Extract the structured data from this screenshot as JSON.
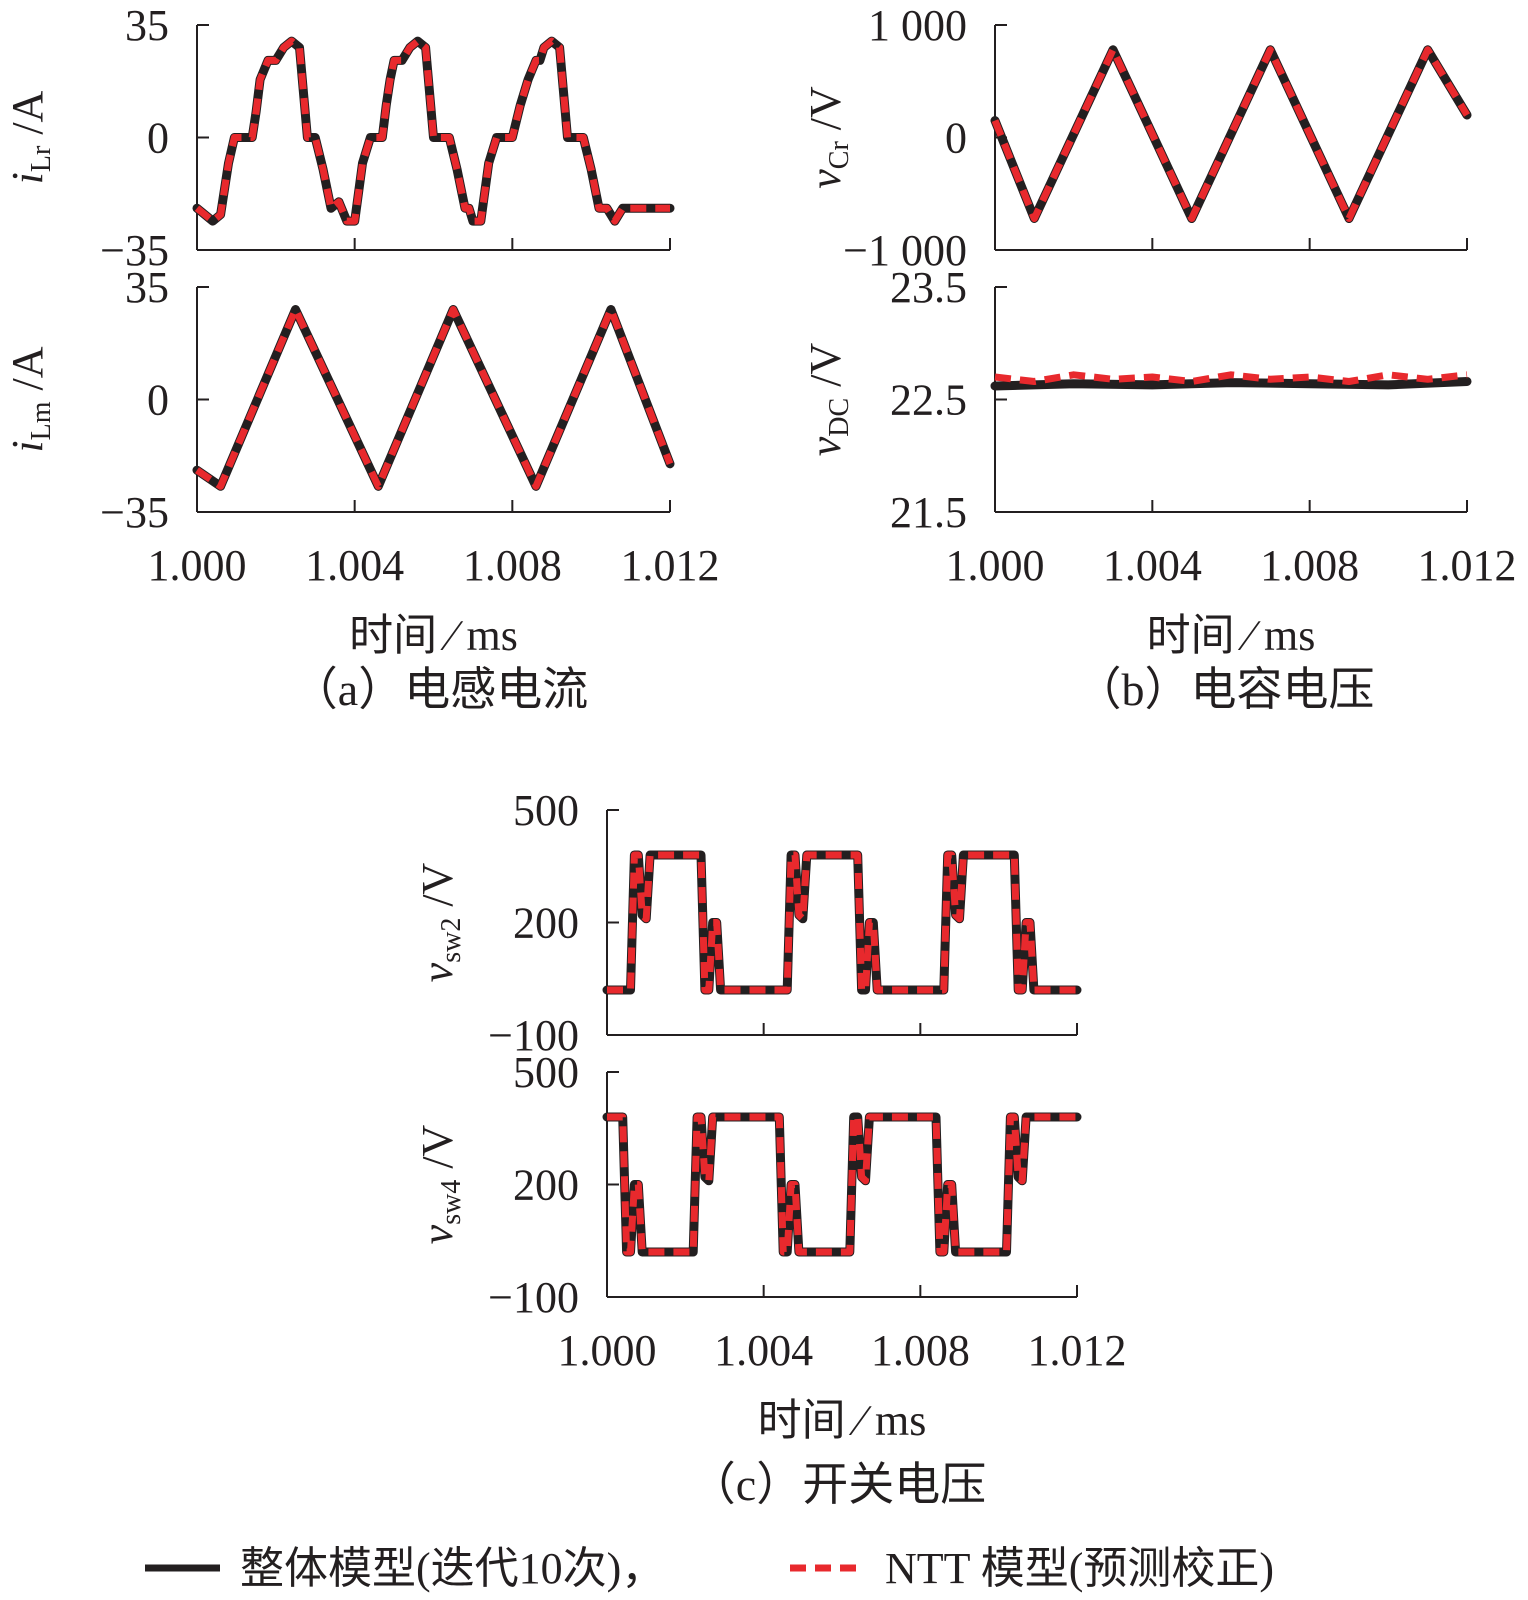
{
  "chart_data": [
    {
      "id": "a-top",
      "type": "line",
      "ylabel": {
        "var": "i",
        "sub": "Lr",
        "unit": "/A"
      },
      "yticks": [
        "35",
        "0",
        "−35"
      ],
      "ylim": [
        -35,
        35
      ],
      "xlim": [
        1.0,
        1.012
      ],
      "show_xticks": false,
      "series": [
        {
          "legend": 0,
          "x": [
            1.0,
            1.0004,
            1.0006,
            1.0008,
            1.00095,
            1.0012,
            1.0014,
            1.0015,
            1.0016,
            1.0018,
            1.002,
            1.0022,
            1.0024,
            1.0026,
            1.0028,
            1.0029,
            1.003,
            1.0032,
            1.0034,
            1.0036,
            1.0038,
            1.004,
            1.0042,
            1.0044,
            1.0046,
            1.0047,
            1.0048,
            1.0049,
            1.005,
            1.0052,
            1.0054,
            1.0056,
            1.0058,
            1.006,
            1.0062,
            1.0064,
            1.0066,
            1.0068,
            1.0069,
            1.007,
            1.0072,
            1.0074,
            1.0076,
            1.0078,
            1.008,
            1.0082,
            1.0084,
            1.0086,
            1.0087,
            1.0088,
            1.009,
            1.0092,
            1.0094,
            1.0096,
            1.0098,
            1.01,
            1.0102,
            1.0104,
            1.0106,
            1.0108,
            1.011,
            1.0112,
            1.0114,
            1.0116,
            1.0118,
            1.012
          ],
          "y": [
            -22,
            -26,
            -24,
            -8,
            0,
            0,
            0,
            8,
            18,
            24,
            24,
            28,
            30,
            28,
            0,
            0,
            0,
            -10,
            -22,
            -20,
            -26,
            -26,
            -8,
            0,
            0,
            0,
            10,
            18,
            24,
            24,
            28,
            30,
            28,
            0,
            0,
            0,
            -10,
            -22,
            -22,
            -26,
            -26,
            -8,
            0,
            0,
            0,
            10,
            18,
            24,
            24,
            28,
            30,
            28,
            0,
            0,
            0,
            -10,
            -22,
            -22,
            -26,
            -22,
            -22,
            -22,
            -22,
            -22,
            -22,
            -22
          ]
        },
        {
          "legend": 1,
          "x": [
            1.0,
            1.0004,
            1.0006,
            1.0008,
            1.00095,
            1.0012,
            1.0014,
            1.0015,
            1.0016,
            1.0018,
            1.002,
            1.0022,
            1.0024,
            1.0026,
            1.0028,
            1.0029,
            1.003,
            1.0032,
            1.0034,
            1.0036,
            1.0038,
            1.004,
            1.0042,
            1.0044,
            1.0046,
            1.0047,
            1.0048,
            1.0049,
            1.005,
            1.0052,
            1.0054,
            1.0056,
            1.0058,
            1.006,
            1.0062,
            1.0064,
            1.0066,
            1.0068,
            1.0069,
            1.007,
            1.0072,
            1.0074,
            1.0076,
            1.0078,
            1.008,
            1.0082,
            1.0084,
            1.0086,
            1.0087,
            1.0088,
            1.009,
            1.0092,
            1.0094,
            1.0096,
            1.0098,
            1.01,
            1.0102,
            1.0104,
            1.0106,
            1.0108,
            1.011,
            1.0112,
            1.0114,
            1.0116,
            1.0118,
            1.012
          ],
          "y": [
            -22,
            -26,
            -24,
            -8,
            0,
            0,
            0,
            8,
            18,
            24,
            24,
            28,
            30,
            28,
            0,
            0,
            0,
            -10,
            -22,
            -20,
            -26,
            -26,
            -8,
            0,
            0,
            0,
            10,
            18,
            24,
            24,
            28,
            30,
            28,
            0,
            0,
            0,
            -10,
            -22,
            -22,
            -26,
            -26,
            -8,
            0,
            0,
            0,
            10,
            18,
            24,
            24,
            28,
            30,
            28,
            0,
            0,
            0,
            -10,
            -22,
            -22,
            -26,
            -22,
            -22,
            -22,
            -22,
            -22,
            -22,
            -22
          ]
        }
      ]
    },
    {
      "id": "a-bottom",
      "type": "line",
      "ylabel": {
        "var": "i",
        "sub": "Lm",
        "unit": "/A"
      },
      "yticks": [
        "35",
        "0",
        "−35"
      ],
      "ylim": [
        -35,
        35
      ],
      "xlim": [
        1.0,
        1.012
      ],
      "show_xticks": true,
      "xticks": [
        "1.000",
        "1.004",
        "1.008",
        "1.012"
      ],
      "xlabel": "时间 ∕ ms",
      "series": [
        {
          "legend": 0,
          "x": [
            1.0,
            1.0006,
            1.0025,
            1.0046,
            1.0065,
            1.0086,
            1.0105,
            1.012
          ],
          "y": [
            -22,
            -27,
            28,
            -27,
            28,
            -27,
            28,
            -20
          ]
        },
        {
          "legend": 1,
          "x": [
            1.0,
            1.0006,
            1.0025,
            1.0046,
            1.0065,
            1.0086,
            1.0105,
            1.012
          ],
          "y": [
            -22,
            -27,
            28,
            -27,
            28,
            -27,
            28,
            -20
          ]
        }
      ]
    },
    {
      "id": "b-top",
      "type": "line",
      "ylabel": {
        "var": "v",
        "sub": "Cr",
        "unit": "/V"
      },
      "yticks": [
        "1 000",
        "0",
        "−1 000"
      ],
      "ylim": [
        -1000,
        1000
      ],
      "xlim": [
        1.0,
        1.012
      ],
      "show_xticks": false,
      "series": [
        {
          "legend": 0,
          "x": [
            1.0,
            1.001,
            1.003,
            1.005,
            1.007,
            1.009,
            1.011,
            1.012
          ],
          "y": [
            150,
            -720,
            780,
            -720,
            780,
            -720,
            780,
            200
          ]
        },
        {
          "legend": 1,
          "x": [
            1.0,
            1.001,
            1.003,
            1.005,
            1.007,
            1.009,
            1.011,
            1.012
          ],
          "y": [
            150,
            -720,
            780,
            -720,
            780,
            -720,
            780,
            200
          ]
        }
      ]
    },
    {
      "id": "b-bottom",
      "type": "line",
      "ylabel": {
        "var": "v",
        "sub": "DC",
        "unit": "/V"
      },
      "yticks": [
        "23.5",
        "22.5",
        "21.5"
      ],
      "ylim": [
        21.5,
        23.5
      ],
      "xlim": [
        1.0,
        1.012
      ],
      "show_xticks": true,
      "xticks": [
        "1.000",
        "1.004",
        "1.008",
        "1.012"
      ],
      "xlabel": "时间 ∕ ms",
      "series": [
        {
          "legend": 0,
          "x": [
            1.0,
            1.002,
            1.004,
            1.006,
            1.008,
            1.01,
            1.012
          ],
          "y": [
            22.62,
            22.64,
            22.63,
            22.65,
            22.64,
            22.63,
            22.66
          ]
        },
        {
          "legend": 1,
          "x": [
            1.0,
            1.001,
            1.002,
            1.003,
            1.004,
            1.005,
            1.006,
            1.007,
            1.008,
            1.009,
            1.01,
            1.011,
            1.012
          ],
          "y": [
            22.7,
            22.66,
            22.72,
            22.68,
            22.7,
            22.66,
            22.72,
            22.68,
            22.7,
            22.66,
            22.72,
            22.68,
            22.72
          ]
        }
      ]
    },
    {
      "id": "c-top",
      "type": "line",
      "ylabel": {
        "var": "v",
        "sub": "sw2",
        "unit": "/V"
      },
      "yticks": [
        "500",
        "200",
        "−100"
      ],
      "ylim": [
        -100,
        500
      ],
      "xlim": [
        1.0,
        1.012
      ],
      "show_xticks": false,
      "series": [
        {
          "legend": 0,
          "x": [
            1.0,
            1.0006,
            1.0007,
            1.0008,
            1.0009,
            1.001,
            1.0011,
            1.0012,
            1.0013,
            1.0014,
            1.0024,
            1.0025,
            1.0026,
            1.0027,
            1.0028,
            1.0029,
            1.003,
            1.0031,
            1.0032,
            1.0036,
            1.0046,
            1.0047,
            1.0048,
            1.0049,
            1.005,
            1.0051,
            1.0052,
            1.0053,
            1.0054,
            1.0064,
            1.0065,
            1.0066,
            1.0067,
            1.0068,
            1.0069,
            1.007,
            1.0071,
            1.0072,
            1.0076,
            1.0086,
            1.0087,
            1.0088,
            1.0089,
            1.009,
            1.0091,
            1.0092,
            1.0093,
            1.0094,
            1.0104,
            1.0105,
            1.0106,
            1.0107,
            1.0108,
            1.0109,
            1.011,
            1.0111,
            1.0112,
            1.012
          ],
          "y": [
            20,
            20,
            380,
            380,
            220,
            210,
            380,
            380,
            380,
            380,
            380,
            20,
            20,
            200,
            200,
            20,
            20,
            20,
            20,
            20,
            20,
            380,
            380,
            220,
            210,
            380,
            380,
            380,
            380,
            380,
            20,
            20,
            200,
            200,
            20,
            20,
            20,
            20,
            20,
            20,
            380,
            380,
            220,
            210,
            380,
            380,
            380,
            380,
            380,
            20,
            20,
            200,
            200,
            20,
            20,
            20,
            20,
            20
          ]
        },
        {
          "legend": 1,
          "x": [
            1.0,
            1.0006,
            1.0007,
            1.0008,
            1.0009,
            1.001,
            1.0011,
            1.0012,
            1.0013,
            1.0014,
            1.0024,
            1.0025,
            1.0026,
            1.0027,
            1.0028,
            1.0029,
            1.003,
            1.0031,
            1.0032,
            1.0036,
            1.0046,
            1.0047,
            1.0048,
            1.0049,
            1.005,
            1.0051,
            1.0052,
            1.0053,
            1.0054,
            1.0064,
            1.0065,
            1.0066,
            1.0067,
            1.0068,
            1.0069,
            1.007,
            1.0071,
            1.0072,
            1.0076,
            1.0086,
            1.0087,
            1.0088,
            1.0089,
            1.009,
            1.0091,
            1.0092,
            1.0093,
            1.0094,
            1.0104,
            1.0105,
            1.0106,
            1.0107,
            1.0108,
            1.0109,
            1.011,
            1.0111,
            1.0112,
            1.012
          ],
          "y": [
            20,
            20,
            380,
            380,
            220,
            210,
            380,
            380,
            380,
            380,
            380,
            20,
            20,
            200,
            200,
            20,
            20,
            20,
            20,
            20,
            20,
            380,
            380,
            220,
            210,
            380,
            380,
            380,
            380,
            380,
            20,
            20,
            200,
            200,
            20,
            20,
            20,
            20,
            20,
            20,
            380,
            380,
            220,
            210,
            380,
            380,
            380,
            380,
            380,
            20,
            20,
            200,
            200,
            20,
            20,
            20,
            20,
            20
          ]
        }
      ]
    },
    {
      "id": "c-bottom",
      "type": "line",
      "ylabel": {
        "var": "v",
        "sub": "sw4",
        "unit": "/V"
      },
      "yticks": [
        "500",
        "200",
        "−100"
      ],
      "ylim": [
        -100,
        500
      ],
      "xlim": [
        1.0,
        1.012
      ],
      "show_xticks": true,
      "xticks": [
        "1.000",
        "1.004",
        "1.008",
        "1.012"
      ],
      "xlabel": "时间 ∕ ms",
      "series": [
        {
          "legend": 0,
          "x": [
            1.0,
            1.0004,
            1.0005,
            1.0006,
            1.0007,
            1.0008,
            1.0009,
            1.001,
            1.0011,
            1.0012,
            1.0022,
            1.0023,
            1.0024,
            1.0025,
            1.0026,
            1.0027,
            1.0028,
            1.0029,
            1.003,
            1.0034,
            1.0044,
            1.0045,
            1.0046,
            1.0047,
            1.0048,
            1.0049,
            1.005,
            1.0051,
            1.0052,
            1.0062,
            1.0063,
            1.0064,
            1.0065,
            1.0066,
            1.0067,
            1.0068,
            1.0069,
            1.007,
            1.0074,
            1.0084,
            1.0085,
            1.0086,
            1.0087,
            1.0088,
            1.0089,
            1.009,
            1.0091,
            1.0092,
            1.0102,
            1.0103,
            1.0104,
            1.0105,
            1.0106,
            1.0107,
            1.0108,
            1.0109,
            1.011,
            1.012
          ],
          "y": [
            380,
            380,
            20,
            20,
            200,
            200,
            20,
            20,
            20,
            20,
            20,
            380,
            380,
            220,
            210,
            380,
            380,
            380,
            380,
            380,
            380,
            20,
            20,
            200,
            200,
            20,
            20,
            20,
            20,
            20,
            380,
            380,
            220,
            210,
            380,
            380,
            380,
            380,
            380,
            380,
            20,
            20,
            200,
            200,
            20,
            20,
            20,
            20,
            20,
            380,
            380,
            220,
            210,
            380,
            380,
            380,
            380,
            380
          ]
        },
        {
          "legend": 1,
          "x": [
            1.0,
            1.0004,
            1.0005,
            1.0006,
            1.0007,
            1.0008,
            1.0009,
            1.001,
            1.0011,
            1.0012,
            1.0022,
            1.0023,
            1.0024,
            1.0025,
            1.0026,
            1.0027,
            1.0028,
            1.0029,
            1.003,
            1.0034,
            1.0044,
            1.0045,
            1.0046,
            1.0047,
            1.0048,
            1.0049,
            1.005,
            1.0051,
            1.0052,
            1.0062,
            1.0063,
            1.0064,
            1.0065,
            1.0066,
            1.0067,
            1.0068,
            1.0069,
            1.007,
            1.0074,
            1.0084,
            1.0085,
            1.0086,
            1.0087,
            1.0088,
            1.0089,
            1.009,
            1.0091,
            1.0092,
            1.0102,
            1.0103,
            1.0104,
            1.0105,
            1.0106,
            1.0107,
            1.0108,
            1.0109,
            1.011,
            1.012
          ],
          "y": [
            380,
            380,
            20,
            20,
            200,
            200,
            20,
            20,
            20,
            20,
            20,
            380,
            380,
            220,
            210,
            380,
            380,
            380,
            380,
            380,
            380,
            20,
            20,
            200,
            200,
            20,
            20,
            20,
            20,
            20,
            380,
            380,
            220,
            210,
            380,
            380,
            380,
            380,
            380,
            380,
            20,
            20,
            200,
            200,
            20,
            20,
            20,
            20,
            20,
            380,
            380,
            220,
            210,
            380,
            380,
            380,
            380,
            380
          ]
        }
      ]
    }
  ],
  "captions": {
    "a": "（a）电感电流",
    "b": "（b）电容电压",
    "c": "（c）开关电压"
  },
  "legend": [
    {
      "label": "整体模型(迭代10次)，",
      "color": "#231f20",
      "style": "solid"
    },
    {
      "label": "NTT 模型(预测校正)",
      "color": "#e8292d",
      "style": "dashed"
    }
  ],
  "colors": {
    "reference": "#231f20",
    "ntt": "#e8292d",
    "axis": "#231f20"
  }
}
